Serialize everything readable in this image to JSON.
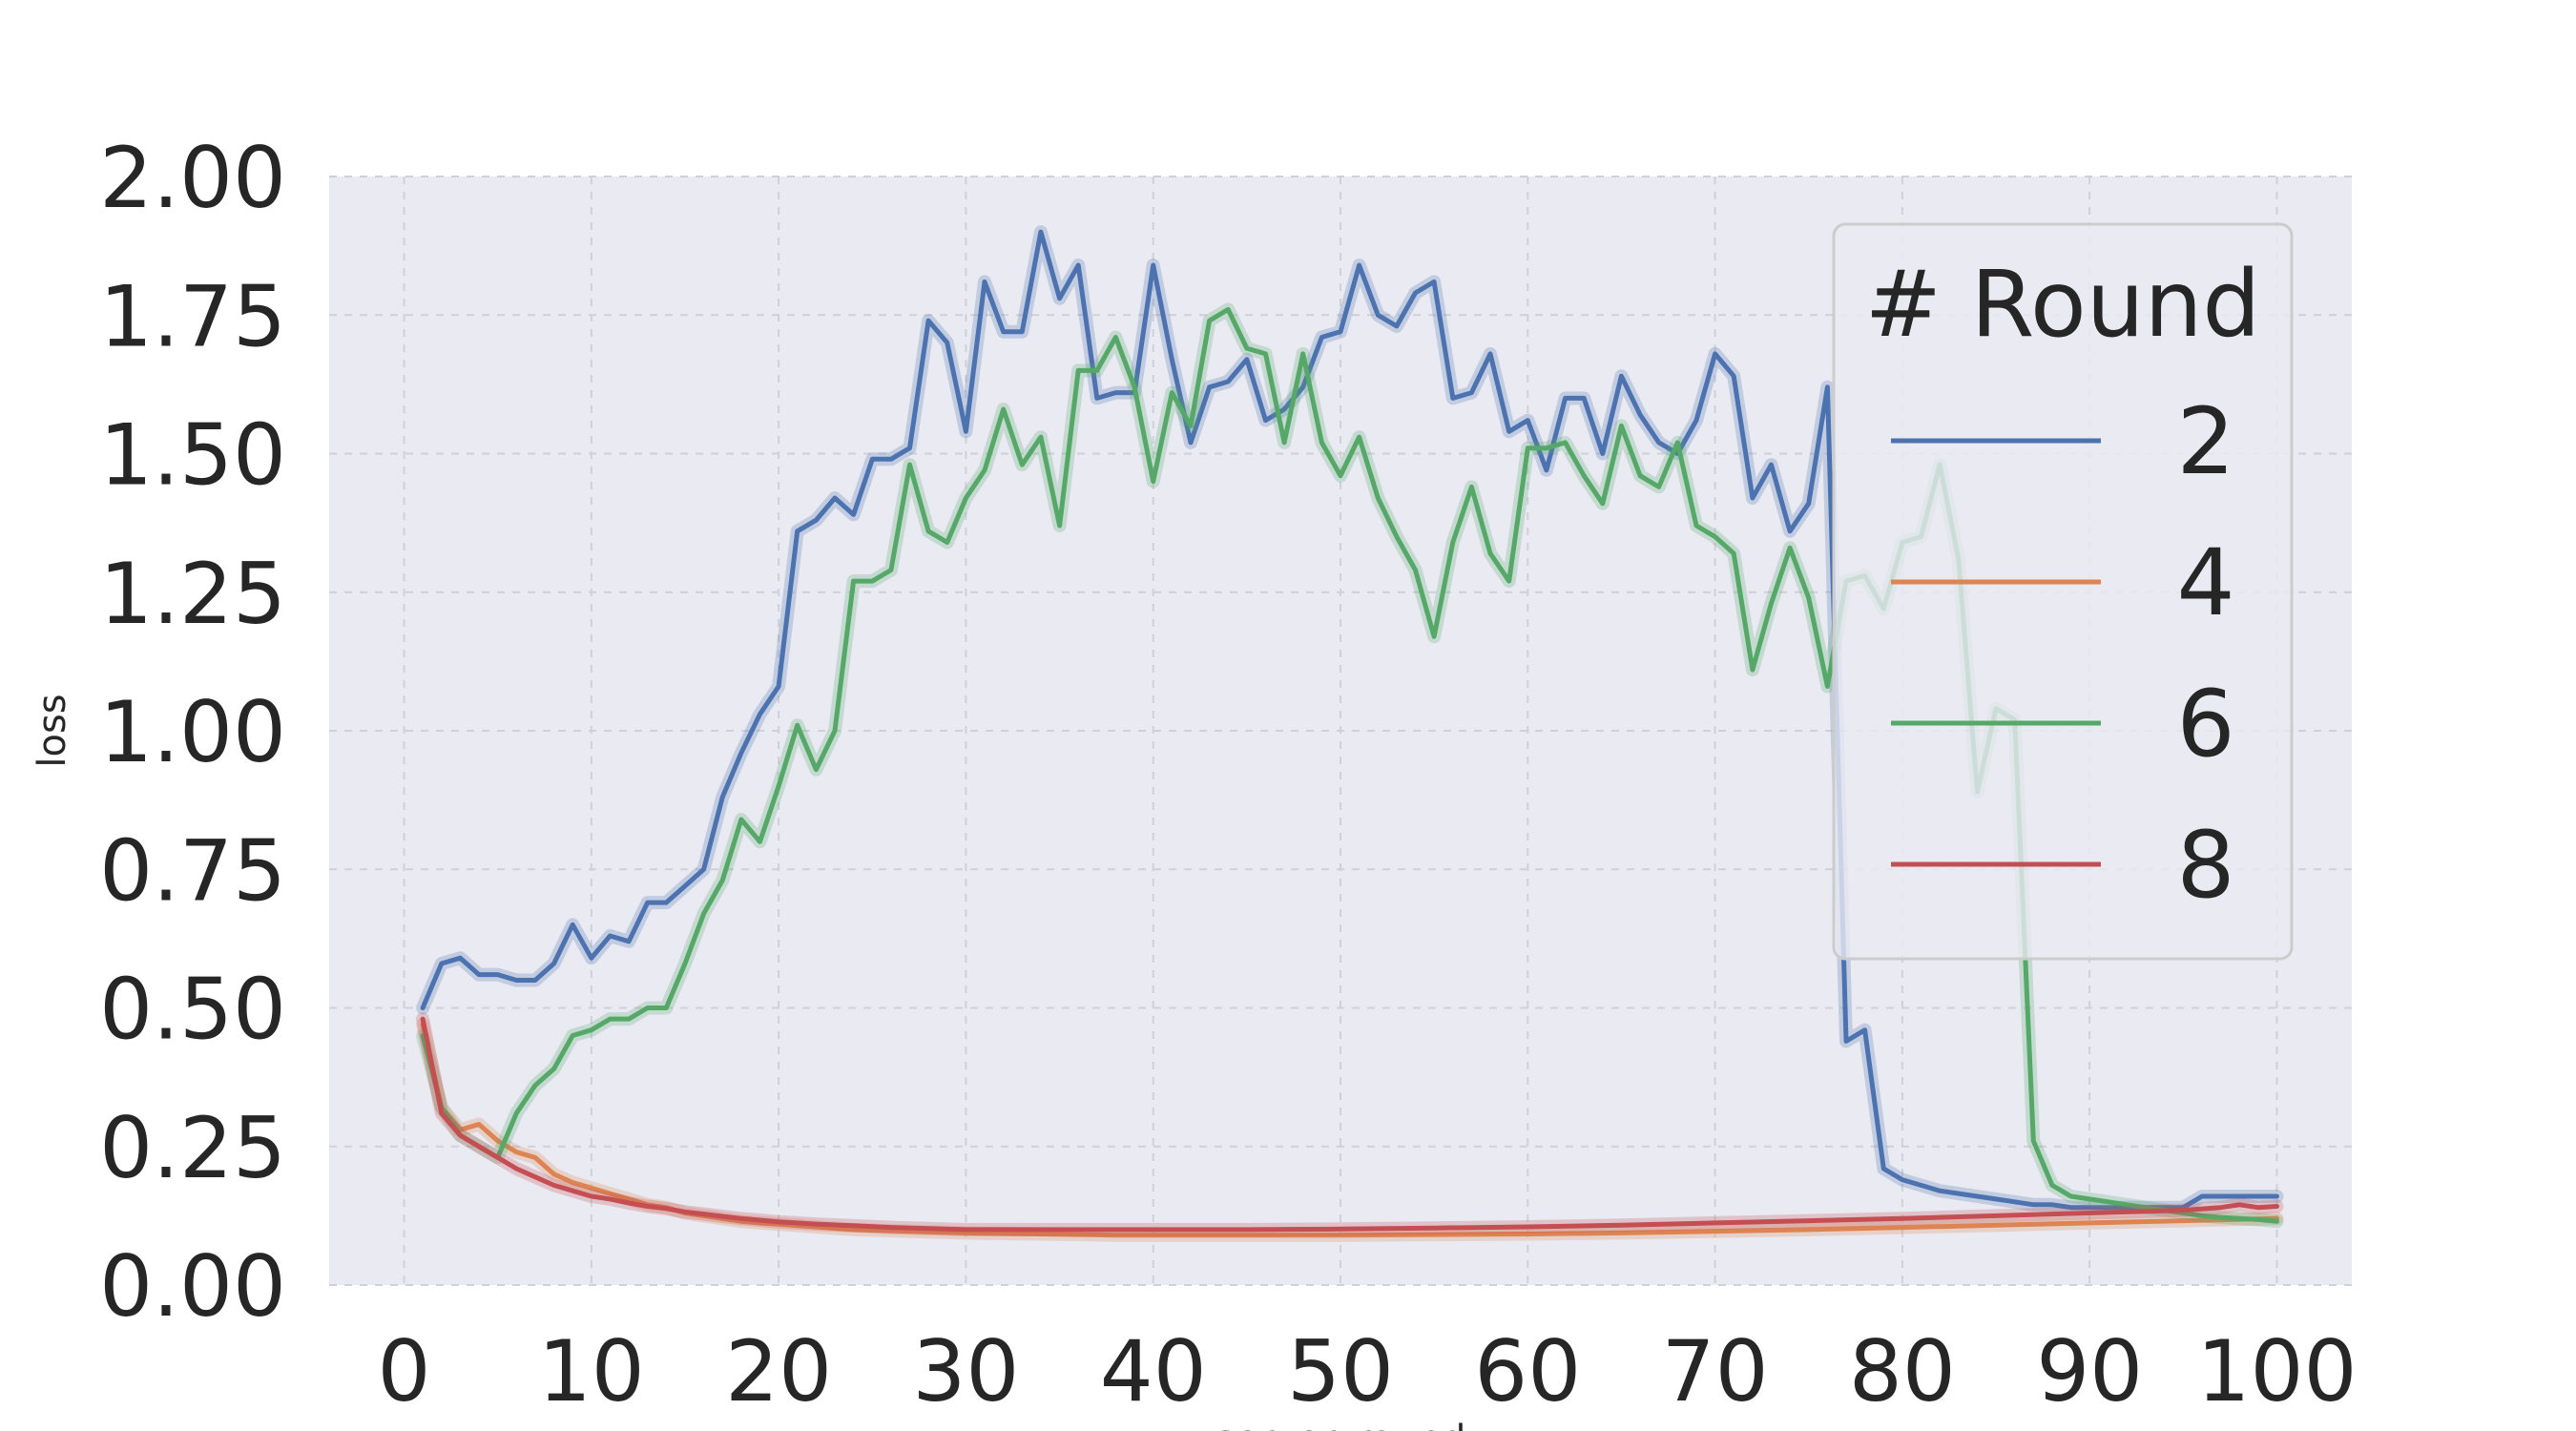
{
  "chart_data": {
    "type": "line",
    "title": "",
    "xlabel": "server_round",
    "ylabel": "loss",
    "xlim": [
      -4,
      104
    ],
    "ylim": [
      0,
      2
    ],
    "xticks": [
      0,
      10,
      20,
      30,
      40,
      50,
      60,
      70,
      80,
      90,
      100
    ],
    "yticks": [
      0,
      0.25,
      0.5,
      0.75,
      1.0,
      1.25,
      1.5,
      1.75,
      2.0
    ],
    "xtick_labels": [
      "0",
      "10",
      "20",
      "30",
      "40",
      "50",
      "60",
      "70",
      "80",
      "90",
      "100"
    ],
    "ytick_labels": [
      "0.00",
      "0.25",
      "0.50",
      "0.75",
      "1.00",
      "1.25",
      "1.50",
      "1.75",
      "2.00"
    ],
    "grid": true,
    "legend": {
      "title": "# Round",
      "placement": "top-right"
    },
    "series": [
      {
        "name": "2",
        "color": "#4c72b0",
        "points": [
          [
            1,
            0.5
          ],
          [
            2,
            0.58
          ],
          [
            3,
            0.59
          ],
          [
            4,
            0.56
          ],
          [
            5,
            0.56
          ],
          [
            6,
            0.55
          ],
          [
            7,
            0.55
          ],
          [
            8,
            0.58
          ],
          [
            9,
            0.65
          ],
          [
            10,
            0.59
          ],
          [
            11,
            0.63
          ],
          [
            12,
            0.62
          ],
          [
            13,
            0.69
          ],
          [
            14,
            0.69
          ],
          [
            15,
            0.72
          ],
          [
            16,
            0.75
          ],
          [
            17,
            0.88
          ],
          [
            18,
            0.96
          ],
          [
            19,
            1.03
          ],
          [
            20,
            1.08
          ],
          [
            21,
            1.36
          ],
          [
            22,
            1.38
          ],
          [
            23,
            1.42
          ],
          [
            24,
            1.39
          ],
          [
            25,
            1.49
          ],
          [
            26,
            1.49
          ],
          [
            27,
            1.51
          ],
          [
            28,
            1.74
          ],
          [
            29,
            1.7
          ],
          [
            30,
            1.54
          ],
          [
            31,
            1.81
          ],
          [
            32,
            1.72
          ],
          [
            33,
            1.72
          ],
          [
            34,
            1.9
          ],
          [
            35,
            1.78
          ],
          [
            36,
            1.84
          ],
          [
            37,
            1.6
          ],
          [
            38,
            1.61
          ],
          [
            39,
            1.61
          ],
          [
            40,
            1.84
          ],
          [
            41,
            1.67
          ],
          [
            42,
            1.52
          ],
          [
            43,
            1.62
          ],
          [
            44,
            1.63
          ],
          [
            45,
            1.67
          ],
          [
            46,
            1.56
          ],
          [
            47,
            1.58
          ],
          [
            48,
            1.62
          ],
          [
            49,
            1.71
          ],
          [
            50,
            1.72
          ],
          [
            51,
            1.84
          ],
          [
            52,
            1.75
          ],
          [
            53,
            1.73
          ],
          [
            54,
            1.79
          ],
          [
            55,
            1.81
          ],
          [
            56,
            1.6
          ],
          [
            57,
            1.61
          ],
          [
            58,
            1.68
          ],
          [
            59,
            1.54
          ],
          [
            60,
            1.56
          ],
          [
            61,
            1.47
          ],
          [
            62,
            1.6
          ],
          [
            63,
            1.6
          ],
          [
            64,
            1.5
          ],
          [
            65,
            1.64
          ],
          [
            66,
            1.57
          ],
          [
            67,
            1.52
          ],
          [
            68,
            1.5
          ],
          [
            69,
            1.56
          ],
          [
            70,
            1.68
          ],
          [
            71,
            1.64
          ],
          [
            72,
            1.42
          ],
          [
            73,
            1.48
          ],
          [
            74,
            1.36
          ],
          [
            75,
            1.41
          ],
          [
            76,
            1.62
          ],
          [
            77,
            0.44
          ],
          [
            78,
            0.46
          ],
          [
            79,
            0.21
          ],
          [
            80,
            0.19
          ],
          [
            81,
            0.18
          ],
          [
            82,
            0.17
          ],
          [
            83,
            0.165
          ],
          [
            84,
            0.16
          ],
          [
            85,
            0.155
          ],
          [
            86,
            0.15
          ],
          [
            87,
            0.145
          ],
          [
            88,
            0.145
          ],
          [
            89,
            0.14
          ],
          [
            90,
            0.14
          ],
          [
            91,
            0.14
          ],
          [
            92,
            0.14
          ],
          [
            93,
            0.14
          ],
          [
            94,
            0.14
          ],
          [
            95,
            0.14
          ],
          [
            96,
            0.16
          ],
          [
            97,
            0.16
          ],
          [
            98,
            0.16
          ],
          [
            99,
            0.16
          ],
          [
            100,
            0.16
          ]
        ]
      },
      {
        "name": "4",
        "color": "#dd8452",
        "points": [
          [
            1,
            0.47
          ],
          [
            2,
            0.32
          ],
          [
            3,
            0.28
          ],
          [
            4,
            0.29
          ],
          [
            5,
            0.26
          ],
          [
            6,
            0.24
          ],
          [
            7,
            0.23
          ],
          [
            8,
            0.2
          ],
          [
            9,
            0.185
          ],
          [
            10,
            0.175
          ],
          [
            11,
            0.165
          ],
          [
            12,
            0.155
          ],
          [
            13,
            0.145
          ],
          [
            14,
            0.14
          ],
          [
            15,
            0.13
          ],
          [
            16,
            0.125
          ],
          [
            17,
            0.12
          ],
          [
            18,
            0.115
          ],
          [
            19,
            0.112
          ],
          [
            20,
            0.11
          ],
          [
            22,
            0.105
          ],
          [
            24,
            0.1
          ],
          [
            26,
            0.098
          ],
          [
            28,
            0.096
          ],
          [
            30,
            0.094
          ],
          [
            32,
            0.093
          ],
          [
            34,
            0.092
          ],
          [
            36,
            0.091
          ],
          [
            38,
            0.09
          ],
          [
            40,
            0.09
          ],
          [
            45,
            0.09
          ],
          [
            50,
            0.09
          ],
          [
            55,
            0.091
          ],
          [
            60,
            0.092
          ],
          [
            65,
            0.094
          ],
          [
            70,
            0.097
          ],
          [
            75,
            0.1
          ],
          [
            80,
            0.104
          ],
          [
            85,
            0.108
          ],
          [
            90,
            0.112
          ],
          [
            95,
            0.116
          ],
          [
            100,
            0.12
          ]
        ]
      },
      {
        "name": "6",
        "color": "#55a868",
        "points": [
          [
            1,
            0.45
          ],
          [
            2,
            0.32
          ],
          [
            3,
            0.27
          ],
          [
            4,
            0.25
          ],
          [
            5,
            0.23
          ],
          [
            6,
            0.31
          ],
          [
            7,
            0.36
          ],
          [
            8,
            0.39
          ],
          [
            9,
            0.45
          ],
          [
            10,
            0.46
          ],
          [
            11,
            0.48
          ],
          [
            12,
            0.48
          ],
          [
            13,
            0.5
          ],
          [
            14,
            0.5
          ],
          [
            15,
            0.58
          ],
          [
            16,
            0.67
          ],
          [
            17,
            0.73
          ],
          [
            18,
            0.84
          ],
          [
            19,
            0.8
          ],
          [
            20,
            0.9
          ],
          [
            21,
            1.01
          ],
          [
            22,
            0.93
          ],
          [
            23,
            1.0
          ],
          [
            24,
            1.27
          ],
          [
            25,
            1.27
          ],
          [
            26,
            1.29
          ],
          [
            27,
            1.48
          ],
          [
            28,
            1.36
          ],
          [
            29,
            1.34
          ],
          [
            30,
            1.42
          ],
          [
            31,
            1.47
          ],
          [
            32,
            1.58
          ],
          [
            33,
            1.48
          ],
          [
            34,
            1.53
          ],
          [
            35,
            1.37
          ],
          [
            36,
            1.65
          ],
          [
            37,
            1.65
          ],
          [
            38,
            1.71
          ],
          [
            39,
            1.62
          ],
          [
            40,
            1.45
          ],
          [
            41,
            1.61
          ],
          [
            42,
            1.55
          ],
          [
            43,
            1.74
          ],
          [
            44,
            1.76
          ],
          [
            45,
            1.69
          ],
          [
            46,
            1.68
          ],
          [
            47,
            1.52
          ],
          [
            48,
            1.68
          ],
          [
            49,
            1.52
          ],
          [
            50,
            1.46
          ],
          [
            51,
            1.53
          ],
          [
            52,
            1.42
          ],
          [
            53,
            1.35
          ],
          [
            54,
            1.29
          ],
          [
            55,
            1.17
          ],
          [
            56,
            1.34
          ],
          [
            57,
            1.44
          ],
          [
            58,
            1.32
          ],
          [
            59,
            1.27
          ],
          [
            60,
            1.51
          ],
          [
            61,
            1.51
          ],
          [
            62,
            1.52
          ],
          [
            63,
            1.46
          ],
          [
            64,
            1.41
          ],
          [
            65,
            1.55
          ],
          [
            66,
            1.46
          ],
          [
            67,
            1.44
          ],
          [
            68,
            1.52
          ],
          [
            69,
            1.37
          ],
          [
            70,
            1.35
          ],
          [
            71,
            1.32
          ],
          [
            72,
            1.11
          ],
          [
            73,
            1.23
          ],
          [
            74,
            1.33
          ],
          [
            75,
            1.24
          ],
          [
            76,
            1.08
          ],
          [
            77,
            1.27
          ],
          [
            78,
            1.28
          ],
          [
            79,
            1.22
          ],
          [
            80,
            1.34
          ],
          [
            81,
            1.35
          ],
          [
            82,
            1.48
          ],
          [
            83,
            1.31
          ],
          [
            84,
            0.89
          ],
          [
            85,
            1.04
          ],
          [
            86,
            1.02
          ],
          [
            87,
            0.26
          ],
          [
            88,
            0.18
          ],
          [
            89,
            0.16
          ],
          [
            90,
            0.155
          ],
          [
            91,
            0.15
          ],
          [
            92,
            0.145
          ],
          [
            93,
            0.14
          ],
          [
            94,
            0.135
          ],
          [
            95,
            0.13
          ],
          [
            96,
            0.125
          ],
          [
            97,
            0.122
          ],
          [
            98,
            0.12
          ],
          [
            99,
            0.118
          ],
          [
            100,
            0.115
          ]
        ]
      },
      {
        "name": "8",
        "color": "#c44e52",
        "points": [
          [
            1,
            0.48
          ],
          [
            2,
            0.31
          ],
          [
            3,
            0.27
          ],
          [
            4,
            0.25
          ],
          [
            5,
            0.23
          ],
          [
            6,
            0.21
          ],
          [
            7,
            0.195
          ],
          [
            8,
            0.18
          ],
          [
            9,
            0.17
          ],
          [
            10,
            0.16
          ],
          [
            11,
            0.155
          ],
          [
            12,
            0.148
          ],
          [
            13,
            0.142
          ],
          [
            14,
            0.138
          ],
          [
            15,
            0.132
          ],
          [
            16,
            0.128
          ],
          [
            17,
            0.124
          ],
          [
            18,
            0.12
          ],
          [
            19,
            0.117
          ],
          [
            20,
            0.114
          ],
          [
            22,
            0.11
          ],
          [
            24,
            0.107
          ],
          [
            26,
            0.104
          ],
          [
            28,
            0.102
          ],
          [
            30,
            0.1
          ],
          [
            35,
            0.1
          ],
          [
            40,
            0.1
          ],
          [
            45,
            0.1
          ],
          [
            50,
            0.101
          ],
          [
            55,
            0.103
          ],
          [
            60,
            0.105
          ],
          [
            65,
            0.108
          ],
          [
            70,
            0.112
          ],
          [
            75,
            0.116
          ],
          [
            80,
            0.12
          ],
          [
            85,
            0.125
          ],
          [
            90,
            0.13
          ],
          [
            95,
            0.135
          ],
          [
            97,
            0.14
          ],
          [
            98,
            0.145
          ],
          [
            99,
            0.14
          ],
          [
            100,
            0.142
          ]
        ]
      }
    ]
  }
}
